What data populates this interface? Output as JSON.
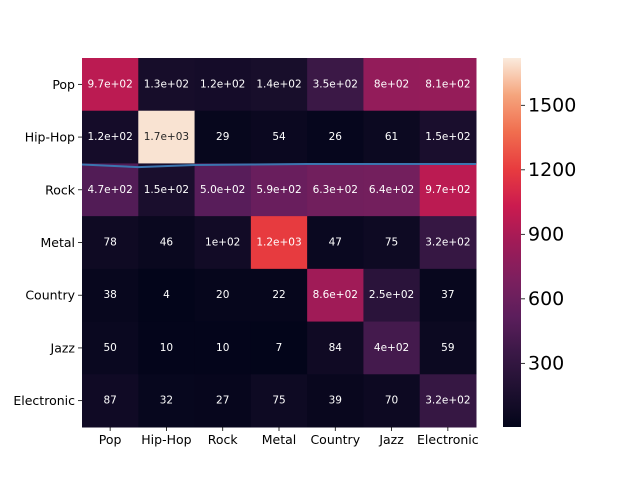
{
  "chart_data": {
    "type": "heatmap",
    "title": "",
    "xlabel": "",
    "ylabel": "",
    "rows": [
      "Pop",
      "Hip-Hop",
      "Rock",
      "Metal",
      "Country",
      "Jazz",
      "Electronic"
    ],
    "columns": [
      "Pop",
      "Hip-Hop",
      "Rock",
      "Metal",
      "Country",
      "Jazz",
      "Electronic"
    ],
    "values": [
      [
        970,
        130,
        120,
        140,
        350,
        800,
        810
      ],
      [
        120,
        1700,
        29,
        54,
        26,
        61,
        150
      ],
      [
        470,
        150,
        500,
        590,
        630,
        640,
        970
      ],
      [
        78,
        46,
        100,
        1200,
        47,
        75,
        320
      ],
      [
        38,
        4,
        20,
        22,
        860,
        250,
        37
      ],
      [
        50,
        10,
        10,
        7,
        84,
        400,
        59
      ],
      [
        87,
        32,
        27,
        75,
        39,
        70,
        320
      ]
    ],
    "annotations": [
      [
        "9.7e+02",
        "1.3e+02",
        "1.2e+02",
        "1.4e+02",
        "3.5e+02",
        "8e+02",
        "8.1e+02"
      ],
      [
        "1.2e+02",
        "1.7e+03",
        "29",
        "54",
        "26",
        "61",
        "1.5e+02"
      ],
      [
        "4.7e+02",
        "1.5e+02",
        "5.0e+02",
        "5.9e+02",
        "6.3e+02",
        "6.4e+02",
        "9.7e+02"
      ],
      [
        "78",
        "46",
        "1e+02",
        "1.2e+03",
        "47",
        "75",
        "3.2e+02"
      ],
      [
        "38",
        "4",
        "20",
        "22",
        "8.6e+02",
        "2.5e+02",
        "37"
      ],
      [
        "50",
        "10",
        "10",
        "7",
        "84",
        "4e+02",
        "59"
      ],
      [
        "87",
        "32",
        "27",
        "75",
        "39",
        "70",
        "3.2e+02"
      ]
    ],
    "vmin": 4,
    "vmax": 1720,
    "colormap": "rocket",
    "colorbar": {
      "ticks": [
        300,
        600,
        900,
        1200,
        1500
      ],
      "tick_labels": [
        "300",
        "600",
        "900",
        "1200",
        "1500"
      ]
    },
    "overlay_line": {
      "color": "#3b75af",
      "points": [
        [
          0,
          2.02
        ],
        [
          1,
          2.07
        ],
        [
          2,
          2.03
        ],
        [
          3,
          2.02
        ],
        [
          4,
          2.01
        ],
        [
          5,
          2.01
        ],
        [
          6,
          2.01
        ],
        [
          7,
          2.01
        ]
      ]
    },
    "grid": false
  }
}
